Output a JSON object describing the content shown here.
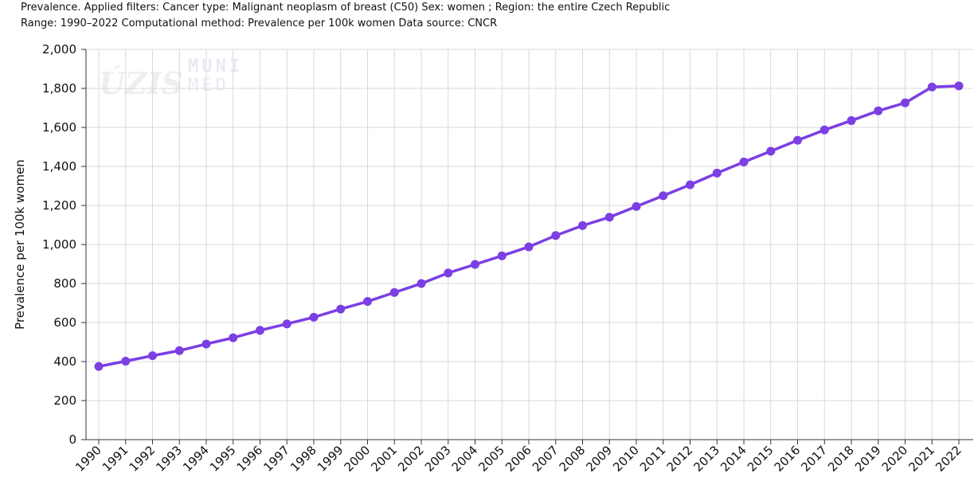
{
  "header": {
    "line1": "Prevalence. Applied filters: Cancer type: Malignant neoplasm of breast (C50) Sex: women ; Region: the entire Czech Republic",
    "line2": "Range: 1990–2022 Computational method: Prevalence per 100k women Data source: CNCR"
  },
  "watermark": {
    "logo1": "ÚZIS",
    "logo2_line1": "MUNI",
    "logo2_line2": "MED"
  },
  "colors": {
    "series": "#7b3fe4",
    "grid": "#d9d9d9",
    "axis": "#333333"
  },
  "chart_data": {
    "type": "line",
    "title": "",
    "xlabel": "",
    "ylabel": "Prevalence per 100k women",
    "ylim": [
      0,
      2000
    ],
    "yticks": [
      0,
      200,
      400,
      600,
      800,
      1000,
      1200,
      1400,
      1600,
      1800,
      2000
    ],
    "ytick_labels": [
      "0",
      "200",
      "400",
      "600",
      "800",
      "1,000",
      "1,200",
      "1,400",
      "1,600",
      "1,800",
      "2,000"
    ],
    "grid": true,
    "legend": "none",
    "x": [
      "1990",
      "1991",
      "1992",
      "1993",
      "1994",
      "1995",
      "1996",
      "1997",
      "1998",
      "1999",
      "2000",
      "2001",
      "2002",
      "2003",
      "2004",
      "2005",
      "2006",
      "2007",
      "2008",
      "2009",
      "2010",
      "2011",
      "2012",
      "2013",
      "2014",
      "2015",
      "2016",
      "2017",
      "2018",
      "2019",
      "2020",
      "2021",
      "2022"
    ],
    "series": [
      {
        "values": [
          375,
          402,
          430,
          456,
          490,
          522,
          560,
          593,
          627,
          669,
          708,
          754,
          800,
          854,
          898,
          942,
          988,
          1046,
          1097,
          1140,
          1195,
          1250,
          1306,
          1366,
          1423,
          1478,
          1534,
          1587,
          1635,
          1685,
          1726,
          1807,
          1813
        ]
      }
    ]
  }
}
